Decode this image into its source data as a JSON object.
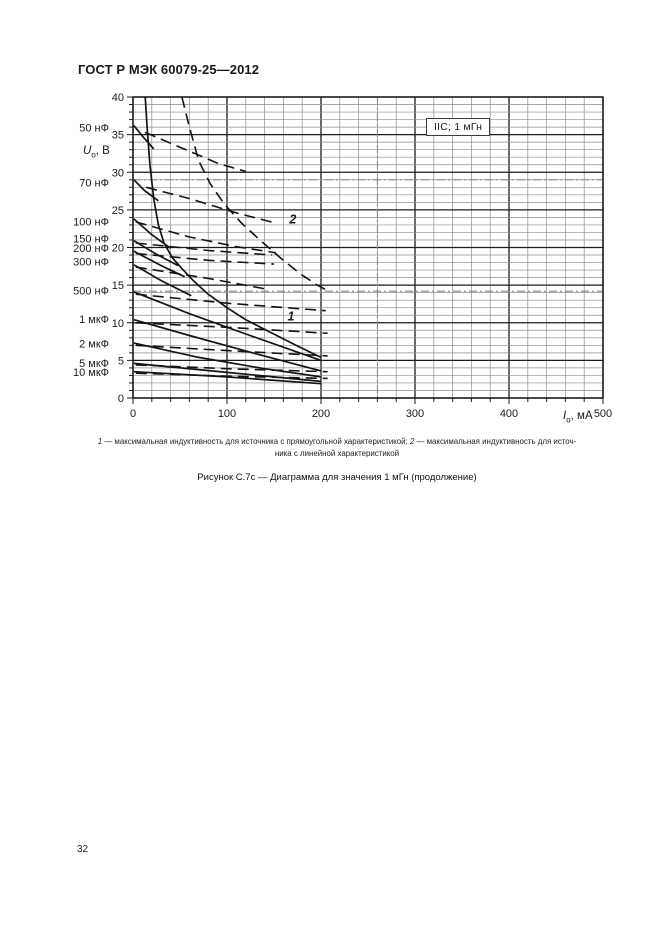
{
  "page": {
    "header": "ГОСТ Р МЭК 60079-25—2012",
    "caption": "Рисунок С.7с — Диаграмма для значения 1 мГн (продолжение)",
    "page_number": "32"
  },
  "footnote": {
    "item1_num": "1",
    "item1_text": " — максимальная индуктивность для источника с прямоугольной характеристикой; ",
    "item2_num": "2",
    "item2_text": " — максимальная индуктивность для источ-",
    "line2": "ника с линейной характеристикой"
  },
  "chart_data": {
    "type": "line",
    "title_box": "IIC; 1 мГн",
    "xlabel_parts": {
      "symbol": "I",
      "subscript": "о",
      "unit": ", мА"
    },
    "ylabel_parts": {
      "symbol": "U",
      "subscript": "о",
      "unit": ", В"
    },
    "xlim": [
      0,
      500
    ],
    "ylim": [
      0,
      40
    ],
    "x_ticks": [
      0,
      100,
      200,
      300,
      400,
      500
    ],
    "y_ticks": [
      0,
      5,
      10,
      15,
      20,
      25,
      30,
      35,
      40
    ],
    "x_minor_step": 20,
    "y_minor_step": 1,
    "grid": "on",
    "ref_lines": {
      "horizontal_v": [
        29,
        14.2
      ],
      "vertical_ma": [
        260
      ]
    },
    "capacitance_labels": [
      {
        "text": "50 нФ",
        "v": 35.9
      },
      {
        "text": "70 нФ",
        "v": 28.6
      },
      {
        "text": "100 нФ",
        "v": 23.4
      },
      {
        "text": "150 нФ",
        "v": 21.1
      },
      {
        "text": "200 нФ",
        "v": 19.9
      },
      {
        "text": "300 нФ",
        "v": 18.1
      },
      {
        "text": "500 нФ",
        "v": 14.2
      },
      {
        "text": "1 мкФ",
        "v": 10.4
      },
      {
        "text": "2 мкФ",
        "v": 7.2
      },
      {
        "text": "5 мкФ",
        "v": 4.6
      },
      {
        "text": "10 мкФ",
        "v": 3.4
      }
    ],
    "curve_annotations": [
      {
        "text": "1",
        "ma": 168,
        "v": 10.3
      },
      {
        "text": "2",
        "ma": 170,
        "v": 23.2
      }
    ],
    "series": [
      {
        "name": "50 нФ прямоугольная",
        "capacitance": "50 нФ",
        "characteristic": "прямоугольная",
        "style": "solid",
        "points": [
          [
            1,
            36.2
          ],
          [
            10,
            34.8
          ],
          [
            22,
            33.1
          ]
        ]
      },
      {
        "name": "50 нФ линейная",
        "capacitance": "50 нФ",
        "characteristic": "линейная",
        "style": "dashed",
        "points": [
          [
            13,
            35.3
          ],
          [
            60,
            32.8
          ],
          [
            90,
            31.2
          ],
          [
            120,
            30.1
          ]
        ]
      },
      {
        "name": "70 нФ прямоугольная",
        "capacitance": "70 нФ",
        "characteristic": "прямоугольная",
        "style": "solid",
        "points": [
          [
            1,
            29.0
          ],
          [
            12,
            27.6
          ],
          [
            27,
            26.2
          ]
        ]
      },
      {
        "name": "70 нФ линейная",
        "capacitance": "70 нФ",
        "characteristic": "линейная",
        "style": "dashed",
        "points": [
          [
            14,
            28.0
          ],
          [
            60,
            26.5
          ],
          [
            110,
            24.6
          ],
          [
            150,
            23.3
          ]
        ]
      },
      {
        "name": "100 нФ прямоугольная",
        "capacitance": "100 нФ",
        "characteristic": "прямоугольная",
        "style": "solid",
        "points": [
          [
            1,
            23.8
          ],
          [
            20,
            21.7
          ],
          [
            40,
            19.9
          ]
        ]
      },
      {
        "name": "100 нФ линейная",
        "capacitance": "100 нФ",
        "characteristic": "линейная",
        "style": "dashed",
        "points": [
          [
            3,
            23.4
          ],
          [
            60,
            21.4
          ],
          [
            110,
            20.1
          ],
          [
            152,
            19.3
          ]
        ]
      },
      {
        "name": "150 нФ прямоугольная",
        "capacitance": "150 нФ",
        "characteristic": "прямоугольная",
        "style": "solid",
        "points": [
          [
            1,
            20.9
          ],
          [
            25,
            19.1
          ],
          [
            48,
            17.6
          ]
        ]
      },
      {
        "name": "150 нФ линейная",
        "capacitance": "150 нФ",
        "characteristic": "линейная",
        "style": "dashed",
        "points": [
          [
            3,
            20.6
          ],
          [
            80,
            19.6
          ],
          [
            148,
            19.0
          ]
        ]
      },
      {
        "name": "200 нФ прямоугольная",
        "capacitance": "200 нФ",
        "characteristic": "прямоугольная",
        "style": "solid",
        "points": [
          [
            1,
            19.5
          ],
          [
            30,
            17.6
          ],
          [
            55,
            16.1
          ]
        ]
      },
      {
        "name": "200 нФ линейная",
        "capacitance": "200 нФ",
        "characteristic": "линейная",
        "style": "dashed",
        "points": [
          [
            3,
            19.2
          ],
          [
            80,
            18.3
          ],
          [
            150,
            17.8
          ]
        ]
      },
      {
        "name": "300 нФ прямоугольная",
        "capacitance": "300 нФ",
        "characteristic": "прямоугольная",
        "style": "solid",
        "points": [
          [
            1,
            17.7
          ],
          [
            30,
            15.6
          ],
          [
            62,
            13.6
          ]
        ]
      },
      {
        "name": "300 нФ линейная",
        "capacitance": "300 нФ",
        "characteristic": "линейная",
        "style": "dashed",
        "points": [
          [
            3,
            17.4
          ],
          [
            80,
            15.9
          ],
          [
            145,
            14.4
          ]
        ]
      },
      {
        "name": "500 нФ прямоугольная",
        "capacitance": "500 нФ",
        "characteristic": "прямоугольная",
        "style": "solid",
        "points": [
          [
            1,
            14.1
          ],
          [
            60,
            11.2
          ],
          [
            120,
            8.5
          ],
          [
            200,
            5.0
          ]
        ]
      },
      {
        "name": "500 нФ линейная",
        "capacitance": "500 нФ",
        "characteristic": "линейная",
        "style": "dashed",
        "points": [
          [
            3,
            13.8
          ],
          [
            100,
            12.6
          ],
          [
            205,
            11.6
          ]
        ]
      },
      {
        "name": "1 мкФ прямоугольная",
        "capacitance": "1 мкФ",
        "characteristic": "прямоугольная",
        "style": "solid",
        "points": [
          [
            1,
            10.4
          ],
          [
            60,
            8.3
          ],
          [
            130,
            5.9
          ],
          [
            200,
            3.6
          ]
        ]
      },
      {
        "name": "1 мкФ линейная",
        "capacitance": "1 мкФ",
        "characteristic": "линейная",
        "style": "dashed",
        "points": [
          [
            3,
            10.0
          ],
          [
            100,
            9.4
          ],
          [
            207,
            8.6
          ]
        ]
      },
      {
        "name": "2 мкФ прямоугольная",
        "capacitance": "2 мкФ",
        "characteristic": "прямоугольная",
        "style": "solid",
        "points": [
          [
            1,
            7.3
          ],
          [
            70,
            5.4
          ],
          [
            140,
            3.9
          ],
          [
            200,
            2.8
          ]
        ]
      },
      {
        "name": "2 мкФ линейная",
        "capacitance": "2 мкФ",
        "characteristic": "линейная",
        "style": "dashed",
        "points": [
          [
            3,
            7.0
          ],
          [
            100,
            6.3
          ],
          [
            207,
            5.6
          ]
        ]
      },
      {
        "name": "5 мкФ прямоугольная",
        "capacitance": "5 мкФ",
        "characteristic": "прямоугольная",
        "style": "solid",
        "points": [
          [
            1,
            4.6
          ],
          [
            100,
            3.4
          ],
          [
            200,
            2.2
          ]
        ]
      },
      {
        "name": "5 мкФ линейная",
        "capacitance": "5 мкФ",
        "characteristic": "линейная",
        "style": "dashed",
        "points": [
          [
            3,
            4.4
          ],
          [
            100,
            3.9
          ],
          [
            207,
            3.5
          ]
        ]
      },
      {
        "name": "10 мкФ прямоугольная",
        "capacitance": "10 мкФ",
        "characteristic": "прямоугольная",
        "style": "solid",
        "points": [
          [
            1,
            3.5
          ],
          [
            100,
            2.8
          ],
          [
            200,
            1.9
          ]
        ]
      },
      {
        "name": "10 мкФ линейная",
        "capacitance": "10 мкФ",
        "characteristic": "линейная",
        "style": "dashed",
        "points": [
          [
            3,
            3.3
          ],
          [
            100,
            2.9
          ],
          [
            207,
            2.6
          ]
        ]
      },
      {
        "name": "1 — макс. индуктивность, прямоугольная характеристика",
        "label": "1",
        "inductance": "1 мГн",
        "characteristic": "прямоугольная",
        "style": "solid",
        "points": [
          [
            13,
            40
          ],
          [
            15,
            36
          ],
          [
            18,
            31
          ],
          [
            22,
            26.5
          ],
          [
            27,
            23
          ],
          [
            33,
            20.6
          ],
          [
            42,
            18.6
          ],
          [
            52,
            17.2
          ],
          [
            65,
            15.5
          ],
          [
            80,
            13.8
          ],
          [
            100,
            12.0
          ],
          [
            120,
            10.4
          ],
          [
            145,
            8.8
          ],
          [
            172,
            7.1
          ],
          [
            200,
            5.4
          ]
        ]
      },
      {
        "name": "2 — макс. индуктивность, линейная характеристика",
        "label": "2",
        "inductance": "1 мГн",
        "characteristic": "линейная",
        "style": "dashed",
        "points": [
          [
            52,
            40
          ],
          [
            60,
            36
          ],
          [
            70,
            31.5
          ],
          [
            82,
            28.5
          ],
          [
            97,
            25.8
          ],
          [
            115,
            23.3
          ],
          [
            135,
            21.0
          ],
          [
            157,
            18.6
          ],
          [
            178,
            16.5
          ],
          [
            196,
            15.0
          ],
          [
            208,
            14.2
          ]
        ]
      }
    ]
  }
}
